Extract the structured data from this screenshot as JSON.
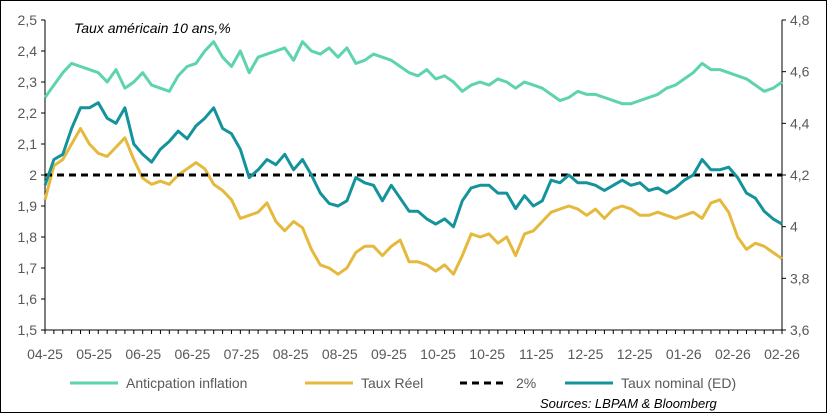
{
  "chart_data": {
    "type": "line",
    "title": "Taux américain 10 ans,%",
    "source": "Sources: LBPAM & Bloomberg",
    "x_tick_labels": [
      "04-25",
      "05-25",
      "06-25",
      "06-25",
      "07-25",
      "08-25",
      "08-25",
      "09-25",
      "10-25",
      "10-25",
      "11-25",
      "12-25",
      "12-25",
      "01-26",
      "02-26",
      "02-26"
    ],
    "y_left": {
      "min": 1.5,
      "max": 2.5,
      "ticks": [
        "1,5",
        "1,6",
        "1,7",
        "1,8",
        "1,9",
        "2",
        "2,1",
        "2,2",
        "2,3",
        "2,4",
        "2,5"
      ]
    },
    "y_right": {
      "min": 3.6,
      "max": 4.8,
      "ticks": [
        "3,6",
        "3,8",
        "4",
        "4,2",
        "4,4",
        "4,6",
        "4,8"
      ]
    },
    "n_points": 84,
    "series": [
      {
        "name": "Anticpation inflation",
        "axis": "left",
        "color": "#5dd3b0",
        "dash": false,
        "values": [
          2.25,
          2.29,
          2.33,
          2.36,
          2.35,
          2.34,
          2.33,
          2.3,
          2.34,
          2.28,
          2.3,
          2.33,
          2.29,
          2.28,
          2.27,
          2.32,
          2.35,
          2.36,
          2.4,
          2.43,
          2.38,
          2.35,
          2.4,
          2.33,
          2.38,
          2.39,
          2.4,
          2.41,
          2.37,
          2.43,
          2.4,
          2.39,
          2.41,
          2.38,
          2.41,
          2.36,
          2.37,
          2.39,
          2.38,
          2.37,
          2.35,
          2.33,
          2.32,
          2.34,
          2.31,
          2.32,
          2.3,
          2.27,
          2.29,
          2.3,
          2.29,
          2.31,
          2.3,
          2.28,
          2.3,
          2.29,
          2.28,
          2.26,
          2.24,
          2.25,
          2.27,
          2.26,
          2.26,
          2.25,
          2.24,
          2.23,
          2.23,
          2.24,
          2.25,
          2.26,
          2.28,
          2.29,
          2.31,
          2.33,
          2.36,
          2.34,
          2.34,
          2.33,
          2.32,
          2.31,
          2.29,
          2.27,
          2.28,
          2.3
        ]
      },
      {
        "name": "Taux Réel",
        "axis": "left",
        "color": "#e5b93d",
        "dash": false,
        "values": [
          1.92,
          2.03,
          2.05,
          2.1,
          2.15,
          2.1,
          2.07,
          2.06,
          2.09,
          2.12,
          2.05,
          1.99,
          1.97,
          1.98,
          1.97,
          2.0,
          2.02,
          2.04,
          2.02,
          1.97,
          1.95,
          1.92,
          1.86,
          1.87,
          1.88,
          1.91,
          1.85,
          1.82,
          1.85,
          1.83,
          1.76,
          1.71,
          1.7,
          1.68,
          1.7,
          1.75,
          1.77,
          1.77,
          1.74,
          1.77,
          1.79,
          1.72,
          1.72,
          1.71,
          1.69,
          1.71,
          1.68,
          1.74,
          1.81,
          1.8,
          1.81,
          1.78,
          1.8,
          1.74,
          1.81,
          1.82,
          1.85,
          1.88,
          1.89,
          1.9,
          1.89,
          1.87,
          1.89,
          1.86,
          1.89,
          1.9,
          1.89,
          1.87,
          1.87,
          1.88,
          1.87,
          1.86,
          1.87,
          1.88,
          1.86,
          1.91,
          1.92,
          1.88,
          1.8,
          1.76,
          1.78,
          1.77,
          1.75,
          1.73
        ]
      },
      {
        "name": "2%",
        "axis": "left",
        "color": "#000000",
        "dash": true,
        "values": [
          2,
          2,
          2,
          2,
          2,
          2,
          2,
          2,
          2,
          2,
          2,
          2,
          2,
          2,
          2,
          2,
          2,
          2,
          2,
          2,
          2,
          2,
          2,
          2,
          2,
          2,
          2,
          2,
          2,
          2,
          2,
          2,
          2,
          2,
          2,
          2,
          2,
          2,
          2,
          2,
          2,
          2,
          2,
          2,
          2,
          2,
          2,
          2,
          2,
          2,
          2,
          2,
          2,
          2,
          2,
          2,
          2,
          2,
          2,
          2,
          2,
          2,
          2,
          2,
          2,
          2,
          2,
          2,
          2,
          2,
          2,
          2,
          2,
          2,
          2,
          2,
          2,
          2,
          2,
          2,
          2,
          2,
          2,
          2
        ]
      },
      {
        "name": "Taux nominal  (ED)",
        "axis": "right",
        "color": "#14939c",
        "dash": false,
        "values": [
          4.16,
          4.26,
          4.28,
          4.38,
          4.46,
          4.46,
          4.48,
          4.42,
          4.4,
          4.46,
          4.32,
          4.28,
          4.25,
          4.3,
          4.33,
          4.37,
          4.34,
          4.39,
          4.42,
          4.46,
          4.38,
          4.36,
          4.3,
          4.19,
          4.22,
          4.26,
          4.24,
          4.28,
          4.22,
          4.26,
          4.2,
          4.13,
          4.09,
          4.08,
          4.1,
          4.19,
          4.17,
          4.16,
          4.1,
          4.16,
          4.11,
          4.06,
          4.06,
          4.03,
          4.01,
          4.03,
          4.0,
          4.1,
          4.15,
          4.16,
          4.16,
          4.13,
          4.13,
          4.07,
          4.12,
          4.08,
          4.1,
          4.18,
          4.17,
          4.2,
          4.17,
          4.17,
          4.16,
          4.14,
          4.16,
          4.18,
          4.16,
          4.17,
          4.14,
          4.15,
          4.13,
          4.15,
          4.18,
          4.2,
          4.26,
          4.22,
          4.22,
          4.23,
          4.19,
          4.13,
          4.11,
          4.06,
          4.03,
          4.01
        ]
      }
    ]
  }
}
